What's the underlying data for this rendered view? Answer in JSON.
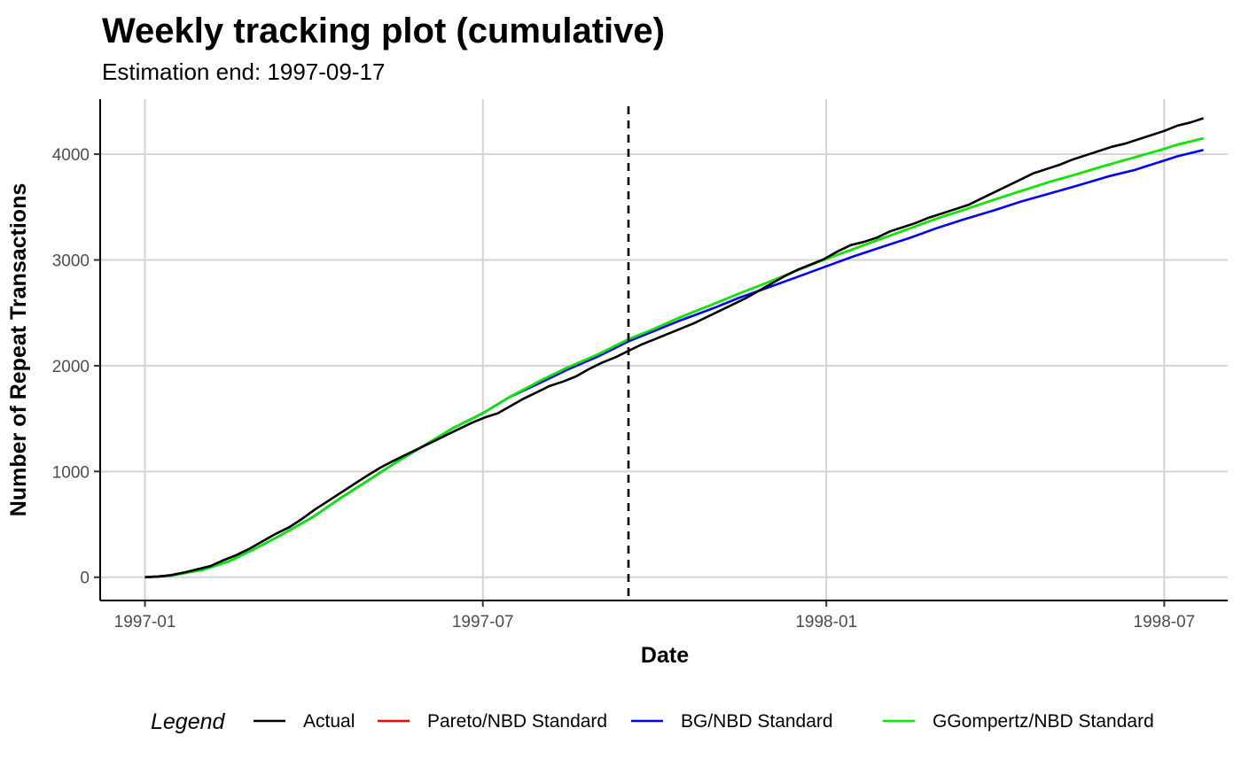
{
  "chart_data": {
    "type": "line",
    "title": "Weekly tracking plot (cumulative)",
    "subtitle": "Estimation end: 1997-09-17",
    "xlabel": "Date",
    "ylabel": "Number of Repeat Transactions",
    "x_ticks": [
      {
        "date": "1997-01-01",
        "label": "1997-01"
      },
      {
        "date": "1997-07-01",
        "label": "1997-07"
      },
      {
        "date": "1998-01-01",
        "label": "1998-01"
      },
      {
        "date": "1998-07-01",
        "label": "1998-07"
      }
    ],
    "y_ticks": [
      0,
      1000,
      2000,
      3000,
      4000
    ],
    "xlim": [
      "1996-12-08",
      "1998-07-35"
    ],
    "ylim": [
      -220,
      4520
    ],
    "grid": true,
    "vline": {
      "date": "1997-09-17",
      "style": "dashed",
      "color": "#000000"
    },
    "legend": {
      "title": "Legend",
      "position": "bottom"
    },
    "series": [
      {
        "name": "Actual",
        "color": "#000000",
        "points": [
          [
            "1997-01-01",
            0
          ],
          [
            "1997-01-08",
            5
          ],
          [
            "1997-01-15",
            20
          ],
          [
            "1997-01-22",
            45
          ],
          [
            "1997-01-29",
            75
          ],
          [
            "1997-02-05",
            105
          ],
          [
            "1997-02-12",
            160
          ],
          [
            "1997-02-19",
            210
          ],
          [
            "1997-02-26",
            270
          ],
          [
            "1997-03-05",
            340
          ],
          [
            "1997-03-12",
            410
          ],
          [
            "1997-03-19",
            470
          ],
          [
            "1997-03-26",
            550
          ],
          [
            "1997-04-02",
            640
          ],
          [
            "1997-04-09",
            720
          ],
          [
            "1997-04-16",
            800
          ],
          [
            "1997-04-23",
            880
          ],
          [
            "1997-04-30",
            960
          ],
          [
            "1997-05-07",
            1035
          ],
          [
            "1997-05-14",
            1100
          ],
          [
            "1997-05-21",
            1160
          ],
          [
            "1997-05-28",
            1220
          ],
          [
            "1997-06-04",
            1280
          ],
          [
            "1997-06-11",
            1340
          ],
          [
            "1997-06-18",
            1400
          ],
          [
            "1997-06-25",
            1460
          ],
          [
            "1997-07-02",
            1510
          ],
          [
            "1997-07-09",
            1550
          ],
          [
            "1997-07-16",
            1620
          ],
          [
            "1997-07-23",
            1690
          ],
          [
            "1997-07-30",
            1750
          ],
          [
            "1997-08-06",
            1810
          ],
          [
            "1997-08-13",
            1850
          ],
          [
            "1997-08-20",
            1900
          ],
          [
            "1997-08-27",
            1970
          ],
          [
            "1997-09-03",
            2030
          ],
          [
            "1997-09-10",
            2080
          ],
          [
            "1997-09-17",
            2140
          ],
          [
            "1997-09-24",
            2200
          ],
          [
            "1997-10-01",
            2250
          ],
          [
            "1997-10-08",
            2300
          ],
          [
            "1997-10-15",
            2350
          ],
          [
            "1997-10-22",
            2400
          ],
          [
            "1997-10-29",
            2460
          ],
          [
            "1997-11-05",
            2520
          ],
          [
            "1997-11-12",
            2580
          ],
          [
            "1997-11-19",
            2640
          ],
          [
            "1997-11-26",
            2710
          ],
          [
            "1997-12-03",
            2780
          ],
          [
            "1997-12-10",
            2850
          ],
          [
            "1997-12-17",
            2910
          ],
          [
            "1997-12-24",
            2960
          ],
          [
            "1997-12-31",
            3010
          ],
          [
            "1998-01-07",
            3080
          ],
          [
            "1998-01-14",
            3140
          ],
          [
            "1998-01-21",
            3170
          ],
          [
            "1998-01-28",
            3210
          ],
          [
            "1998-02-04",
            3270
          ],
          [
            "1998-02-11",
            3310
          ],
          [
            "1998-02-18",
            3350
          ],
          [
            "1998-02-25",
            3400
          ],
          [
            "1998-03-04",
            3440
          ],
          [
            "1998-03-11",
            3480
          ],
          [
            "1998-03-18",
            3520
          ],
          [
            "1998-03-25",
            3580
          ],
          [
            "1998-04-01",
            3640
          ],
          [
            "1998-04-08",
            3700
          ],
          [
            "1998-04-15",
            3760
          ],
          [
            "1998-04-22",
            3820
          ],
          [
            "1998-04-29",
            3860
          ],
          [
            "1998-05-06",
            3900
          ],
          [
            "1998-05-13",
            3950
          ],
          [
            "1998-05-20",
            3990
          ],
          [
            "1998-05-27",
            4030
          ],
          [
            "1998-06-03",
            4070
          ],
          [
            "1998-06-10",
            4100
          ],
          [
            "1998-06-17",
            4140
          ],
          [
            "1998-06-24",
            4180
          ],
          [
            "1998-07-01",
            4220
          ],
          [
            "1998-07-08",
            4270
          ],
          [
            "1998-07-15",
            4300
          ],
          [
            "1998-07-22",
            4340
          ]
        ]
      },
      {
        "name": "Pareto/NBD Standard",
        "color": "#ff0000",
        "points": [
          [
            "1997-01-01",
            0
          ],
          [
            "1997-01-15",
            15
          ],
          [
            "1997-02-01",
            70
          ],
          [
            "1997-02-15",
            150
          ],
          [
            "1997-03-01",
            270
          ],
          [
            "1997-03-15",
            400
          ],
          [
            "1997-04-01",
            570
          ],
          [
            "1997-04-15",
            740
          ],
          [
            "1997-05-01",
            920
          ],
          [
            "1997-05-15",
            1080
          ],
          [
            "1997-06-01",
            1260
          ],
          [
            "1997-06-15",
            1410
          ],
          [
            "1997-07-01",
            1550
          ],
          [
            "1997-07-15",
            1700
          ],
          [
            "1997-08-01",
            1860
          ],
          [
            "1997-08-15",
            1980
          ],
          [
            "1997-09-01",
            2110
          ],
          [
            "1997-09-17",
            2250
          ],
          [
            "1997-10-01",
            2350
          ],
          [
            "1997-10-15",
            2460
          ],
          [
            "1997-11-01",
            2580
          ],
          [
            "1997-11-15",
            2680
          ],
          [
            "1997-12-01",
            2790
          ],
          [
            "1997-12-15",
            2890
          ],
          [
            "1998-01-01",
            3010
          ],
          [
            "1998-01-15",
            3100
          ],
          [
            "1998-02-01",
            3210
          ],
          [
            "1998-02-15",
            3300
          ],
          [
            "1998-03-01",
            3390
          ],
          [
            "1998-03-15",
            3470
          ],
          [
            "1998-04-01",
            3570
          ],
          [
            "1998-04-15",
            3650
          ],
          [
            "1998-05-01",
            3740
          ],
          [
            "1998-05-15",
            3810
          ],
          [
            "1998-06-01",
            3900
          ],
          [
            "1998-06-15",
            3970
          ],
          [
            "1998-07-01",
            4050
          ],
          [
            "1998-07-08",
            4090
          ],
          [
            "1998-07-15",
            4120
          ],
          [
            "1998-07-22",
            4150
          ]
        ]
      },
      {
        "name": "BG/NBD Standard",
        "color": "#0000ff",
        "points": [
          [
            "1997-01-01",
            0
          ],
          [
            "1997-01-15",
            15
          ],
          [
            "1997-02-01",
            70
          ],
          [
            "1997-02-15",
            150
          ],
          [
            "1997-03-01",
            270
          ],
          [
            "1997-03-15",
            400
          ],
          [
            "1997-04-01",
            570
          ],
          [
            "1997-04-15",
            740
          ],
          [
            "1997-05-01",
            920
          ],
          [
            "1997-05-15",
            1080
          ],
          [
            "1997-06-01",
            1260
          ],
          [
            "1997-06-15",
            1410
          ],
          [
            "1997-07-01",
            1550
          ],
          [
            "1997-07-15",
            1700
          ],
          [
            "1997-08-01",
            1840
          ],
          [
            "1997-08-15",
            1960
          ],
          [
            "1997-09-01",
            2090
          ],
          [
            "1997-09-17",
            2230
          ],
          [
            "1997-10-01",
            2330
          ],
          [
            "1997-10-15",
            2430
          ],
          [
            "1997-11-01",
            2540
          ],
          [
            "1997-11-15",
            2640
          ],
          [
            "1997-12-01",
            2740
          ],
          [
            "1997-12-15",
            2830
          ],
          [
            "1998-01-01",
            2940
          ],
          [
            "1998-01-15",
            3030
          ],
          [
            "1998-02-01",
            3130
          ],
          [
            "1998-02-15",
            3210
          ],
          [
            "1998-03-01",
            3300
          ],
          [
            "1998-03-15",
            3380
          ],
          [
            "1998-04-01",
            3470
          ],
          [
            "1998-04-15",
            3550
          ],
          [
            "1998-05-01",
            3630
          ],
          [
            "1998-05-15",
            3700
          ],
          [
            "1998-06-01",
            3790
          ],
          [
            "1998-06-15",
            3850
          ],
          [
            "1998-07-01",
            3940
          ],
          [
            "1998-07-08",
            3980
          ],
          [
            "1998-07-15",
            4010
          ],
          [
            "1998-07-22",
            4040
          ]
        ]
      },
      {
        "name": "GGompertz/NBD Standard",
        "color": "#00ee00",
        "points": [
          [
            "1997-01-01",
            0
          ],
          [
            "1997-01-15",
            15
          ],
          [
            "1997-02-01",
            70
          ],
          [
            "1997-02-15",
            150
          ],
          [
            "1997-03-01",
            270
          ],
          [
            "1997-03-15",
            400
          ],
          [
            "1997-04-01",
            570
          ],
          [
            "1997-04-15",
            740
          ],
          [
            "1997-05-01",
            920
          ],
          [
            "1997-05-15",
            1080
          ],
          [
            "1997-06-01",
            1260
          ],
          [
            "1997-06-15",
            1410
          ],
          [
            "1997-07-01",
            1550
          ],
          [
            "1997-07-15",
            1700
          ],
          [
            "1997-08-01",
            1860
          ],
          [
            "1997-08-15",
            1980
          ],
          [
            "1997-09-01",
            2110
          ],
          [
            "1997-09-17",
            2250
          ],
          [
            "1997-10-01",
            2350
          ],
          [
            "1997-10-15",
            2460
          ],
          [
            "1997-11-01",
            2580
          ],
          [
            "1997-11-15",
            2680
          ],
          [
            "1997-12-01",
            2790
          ],
          [
            "1997-12-15",
            2890
          ],
          [
            "1998-01-01",
            3010
          ],
          [
            "1998-01-15",
            3100
          ],
          [
            "1998-02-01",
            3210
          ],
          [
            "1998-02-15",
            3300
          ],
          [
            "1998-03-01",
            3390
          ],
          [
            "1998-03-15",
            3470
          ],
          [
            "1998-04-01",
            3570
          ],
          [
            "1998-04-15",
            3650
          ],
          [
            "1998-05-01",
            3740
          ],
          [
            "1998-05-15",
            3810
          ],
          [
            "1998-06-01",
            3900
          ],
          [
            "1998-06-15",
            3970
          ],
          [
            "1998-07-01",
            4050
          ],
          [
            "1998-07-08",
            4090
          ],
          [
            "1998-07-15",
            4120
          ],
          [
            "1998-07-22",
            4150
          ]
        ]
      }
    ]
  }
}
